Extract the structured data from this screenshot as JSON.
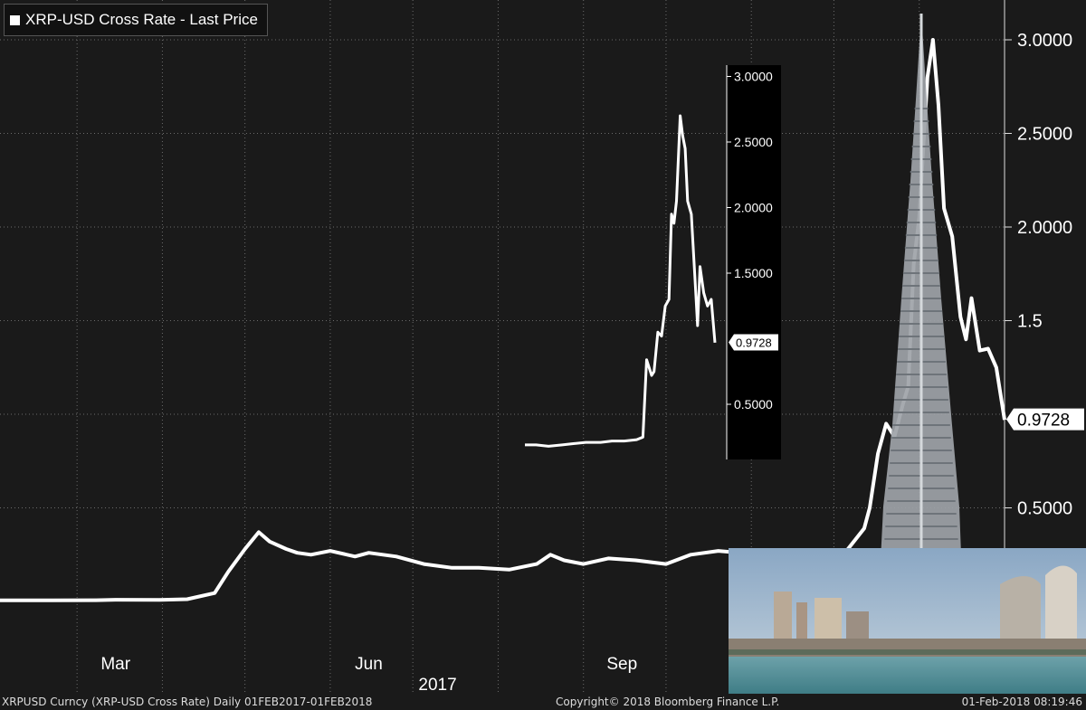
{
  "legend": {
    "label": "XRP-USD Cross Rate - Last Price",
    "swatch_color": "#ffffff"
  },
  "footer": {
    "left": "XRPUSD Curncy (XRP-USD Cross Rate)  Daily 01FEB2017-01FEB2018",
    "center": "Copyright© 2018 Bloomberg Finance L.P.",
    "right": "01-Feb-2018 08:19:46"
  },
  "colors": {
    "background": "#1a1a1a",
    "line": "#ffffff",
    "grid": "#6b6b6b",
    "inset_bg": "#000000"
  },
  "chart_data": [
    {
      "type": "line",
      "title": "XRP-USD Cross Rate - Last Price",
      "xlabel": "2017",
      "x_tick_labels": [
        "Mar",
        "Jun",
        "Sep"
      ],
      "y_tick_labels": [
        "0.5000",
        "1.5",
        "2.0000",
        "2.5000",
        "3.0000"
      ],
      "last_price_label": "0.9728",
      "ylim": [
        0.0,
        3.1
      ],
      "grid": true,
      "series": [
        {
          "name": "XRP-USD Cross Rate - Last Price",
          "x": [
            "2017-02-01",
            "2017-02-20",
            "2017-03-08",
            "2017-03-15",
            "2017-03-31",
            "2017-04-10",
            "2017-04-20",
            "2017-04-25",
            "2017-05-01",
            "2017-05-06",
            "2017-05-10",
            "2017-05-16",
            "2017-05-20",
            "2017-05-25",
            "2017-06-01",
            "2017-06-10",
            "2017-06-15",
            "2017-06-25",
            "2017-07-05",
            "2017-07-15",
            "2017-07-25",
            "2017-08-05",
            "2017-08-15",
            "2017-08-20",
            "2017-08-25",
            "2017-09-01",
            "2017-09-10",
            "2017-09-20",
            "2017-10-01",
            "2017-10-10",
            "2017-10-20",
            "2017-11-05",
            "2017-11-15",
            "2017-11-25",
            "2017-12-05",
            "2017-12-12",
            "2017-12-14",
            "2017-12-17",
            "2017-12-20",
            "2017-12-23",
            "2017-12-26",
            "2017-12-28",
            "2017-12-30",
            "2018-01-01",
            "2018-01-04",
            "2018-01-06",
            "2018-01-08",
            "2018-01-10",
            "2018-01-13",
            "2018-01-16",
            "2018-01-18",
            "2018-01-20",
            "2018-01-23",
            "2018-01-26",
            "2018-01-29",
            "2018-02-01"
          ],
          "values": [
            0.006,
            0.006,
            0.007,
            0.009,
            0.008,
            0.012,
            0.045,
            0.16,
            0.28,
            0.37,
            0.32,
            0.28,
            0.26,
            0.25,
            0.27,
            0.24,
            0.26,
            0.24,
            0.2,
            0.18,
            0.18,
            0.17,
            0.2,
            0.25,
            0.22,
            0.2,
            0.23,
            0.22,
            0.2,
            0.25,
            0.27,
            0.25,
            0.24,
            0.25,
            0.26,
            0.39,
            0.5,
            0.79,
            0.95,
            0.88,
            1.05,
            1.15,
            1.8,
            2.05,
            2.8,
            3.0,
            2.65,
            2.1,
            1.95,
            1.52,
            1.4,
            1.62,
            1.34,
            1.35,
            1.25,
            0.97
          ]
        }
      ]
    },
    {
      "type": "line",
      "y_tick_labels": [
        "0.5000",
        "1.5000",
        "2.0000",
        "2.5000",
        "3.0000"
      ],
      "last_price_label": "0.9728",
      "ylim": [
        0.2,
        3.05
      ],
      "grid": false,
      "series": [
        {
          "x": [
            "2017-09-01",
            "2017-09-10",
            "2017-09-20",
            "2017-10-01",
            "2017-10-10",
            "2017-10-20",
            "2017-11-01",
            "2017-11-10",
            "2017-11-20",
            "2017-11-30",
            "2017-12-05",
            "2017-12-08",
            "2017-12-12",
            "2017-12-14",
            "2017-12-17",
            "2017-12-20",
            "2017-12-23",
            "2017-12-26",
            "2017-12-28",
            "2017-12-30",
            "2018-01-01",
            "2018-01-04",
            "2018-01-06",
            "2018-01-08",
            "2018-01-10",
            "2018-01-13",
            "2018-01-16",
            "2018-01-18",
            "2018-01-20",
            "2018-01-23",
            "2018-01-26",
            "2018-01-29",
            "2018-02-01"
          ],
          "values": [
            0.19,
            0.19,
            0.18,
            0.19,
            0.2,
            0.21,
            0.21,
            0.22,
            0.22,
            0.23,
            0.25,
            0.84,
            0.72,
            0.75,
            1.05,
            1.02,
            1.25,
            1.3,
            1.95,
            1.88,
            2.05,
            2.7,
            2.55,
            2.45,
            2.05,
            1.95,
            1.45,
            1.1,
            1.55,
            1.35,
            1.25,
            1.3,
            0.97
          ]
        }
      ]
    }
  ],
  "decorations": {
    "photo": "Burj Khalifa skyline"
  }
}
